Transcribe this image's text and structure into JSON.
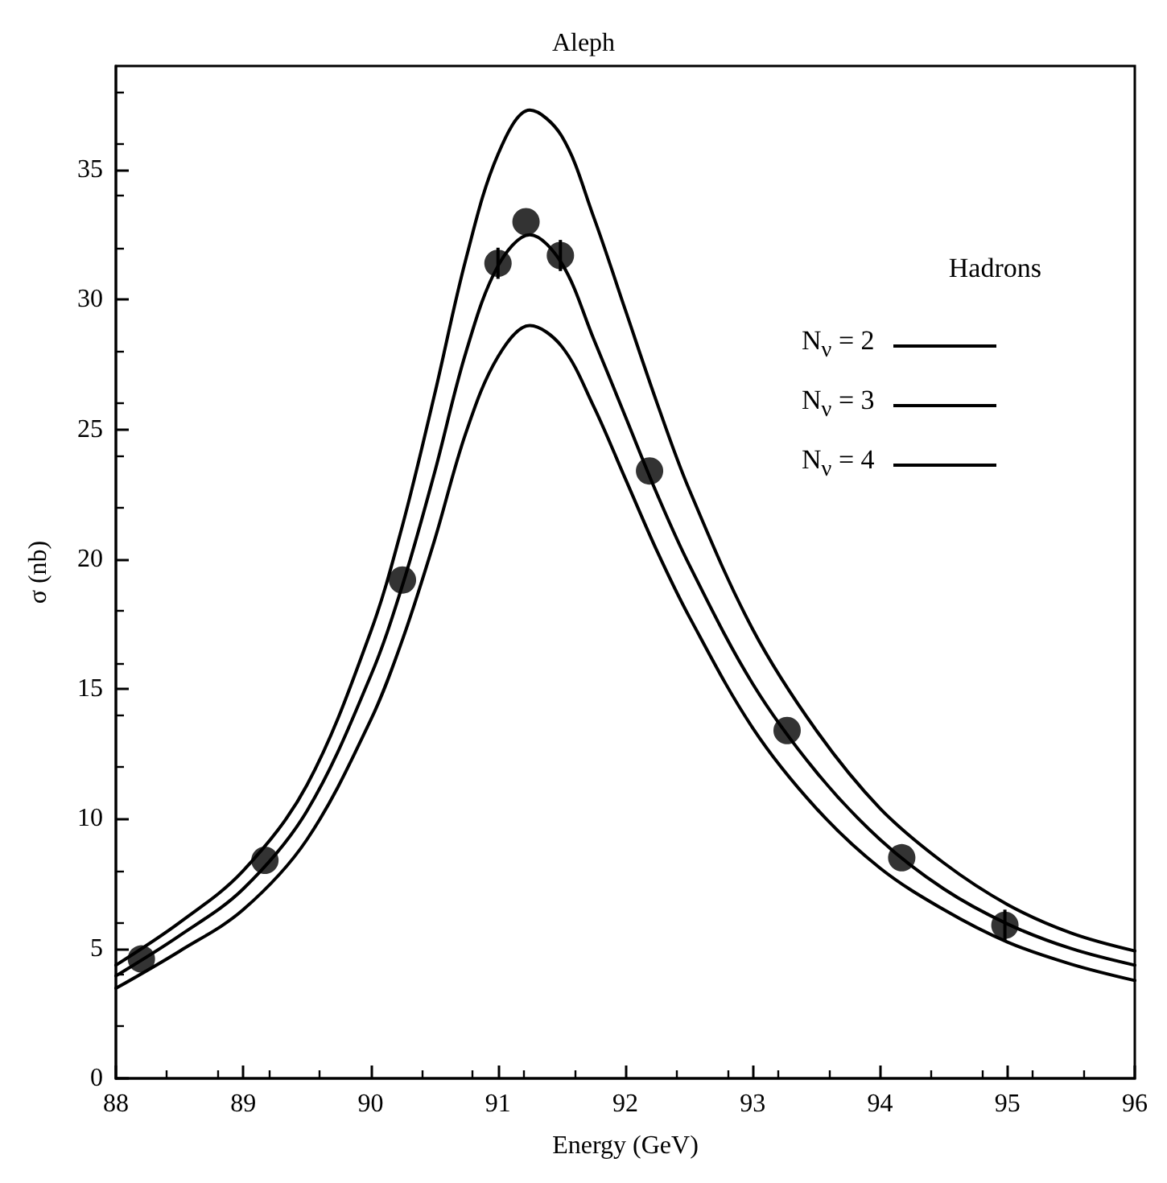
{
  "chart_data": {
    "type": "line",
    "title": "Aleph",
    "xlabel": "Energy (GeV)",
    "ylabel": "σ (nb)",
    "annotations": [
      "Hadrons"
    ],
    "xlim": [
      88,
      96
    ],
    "ylim": [
      0,
      39
    ],
    "xticks": [
      88,
      89,
      90,
      91,
      92,
      93,
      94,
      95,
      96
    ],
    "yticks": [
      0,
      5,
      10,
      15,
      20,
      25,
      30,
      35
    ],
    "grid": false,
    "legend": "top right",
    "line_style": "solid",
    "series": [
      {
        "name": "N$_{ν}$ = 2",
        "color": "#000000",
        "marker": "none",
        "x": [
          88,
          88.5,
          89,
          89.5,
          90,
          90.25,
          90.5,
          90.75,
          91,
          91.25,
          91.5,
          91.75,
          92,
          92.25,
          92.5,
          93,
          93.5,
          94,
          94.5,
          95,
          95.5,
          96
        ],
        "values": [
          4.36,
          6.0,
          8.0,
          11.3,
          17.2,
          21.3,
          26.3,
          31.6,
          35.6,
          37.3,
          36.3,
          33.2,
          29.6,
          26.0,
          22.7,
          17.3,
          13.4,
          10.4,
          8.3,
          6.7,
          5.6,
          4.91
        ]
      },
      {
        "name": "N$_{ν}$ = 3",
        "color": "#000000",
        "marker": "none",
        "x": [
          88,
          88.5,
          89,
          89.5,
          90,
          90.25,
          90.5,
          90.75,
          91,
          91.25,
          91.5,
          91.75,
          92,
          92.25,
          92.5,
          93,
          93.5,
          94,
          94.5,
          95,
          95.5,
          96
        ],
        "values": [
          3.95,
          5.5,
          7.3,
          10.3,
          15.5,
          19.0,
          23.3,
          28.0,
          31.3,
          32.5,
          31.4,
          28.5,
          25.5,
          22.5,
          19.8,
          15.2,
          11.8,
          9.2,
          7.3,
          5.95,
          5.0,
          4.36
        ]
      },
      {
        "name": "N$_{ν}$ = 4",
        "color": "#000000",
        "marker": "none",
        "x": [
          88,
          88.5,
          89,
          89.5,
          90,
          90.25,
          90.5,
          90.75,
          91,
          91.25,
          91.5,
          91.75,
          92,
          92.25,
          92.5,
          93,
          93.5,
          94,
          94.5,
          95,
          95.5,
          96
        ],
        "values": [
          3.47,
          4.9,
          6.5,
          9.2,
          13.8,
          16.9,
          20.7,
          24.9,
          27.8,
          29.0,
          28.2,
          25.9,
          23.1,
          20.3,
          17.8,
          13.5,
          10.4,
          8.1,
          6.5,
          5.25,
          4.4,
          3.77
        ]
      },
      {
        "type": "scatter",
        "color": "#000000",
        "marker": "circle",
        "x": [
          88.2,
          89.17,
          90.25,
          91.0,
          91.22,
          91.49,
          92.19,
          93.27,
          94.17,
          94.98
        ],
        "values": [
          4.6,
          8.4,
          19.2,
          31.4,
          33.0,
          31.7,
          23.4,
          13.4,
          8.5,
          5.9
        ],
        "errors": [
          null,
          null,
          null,
          0.6,
          null,
          0.6,
          null,
          null,
          null,
          0.6
        ]
      }
    ]
  }
}
